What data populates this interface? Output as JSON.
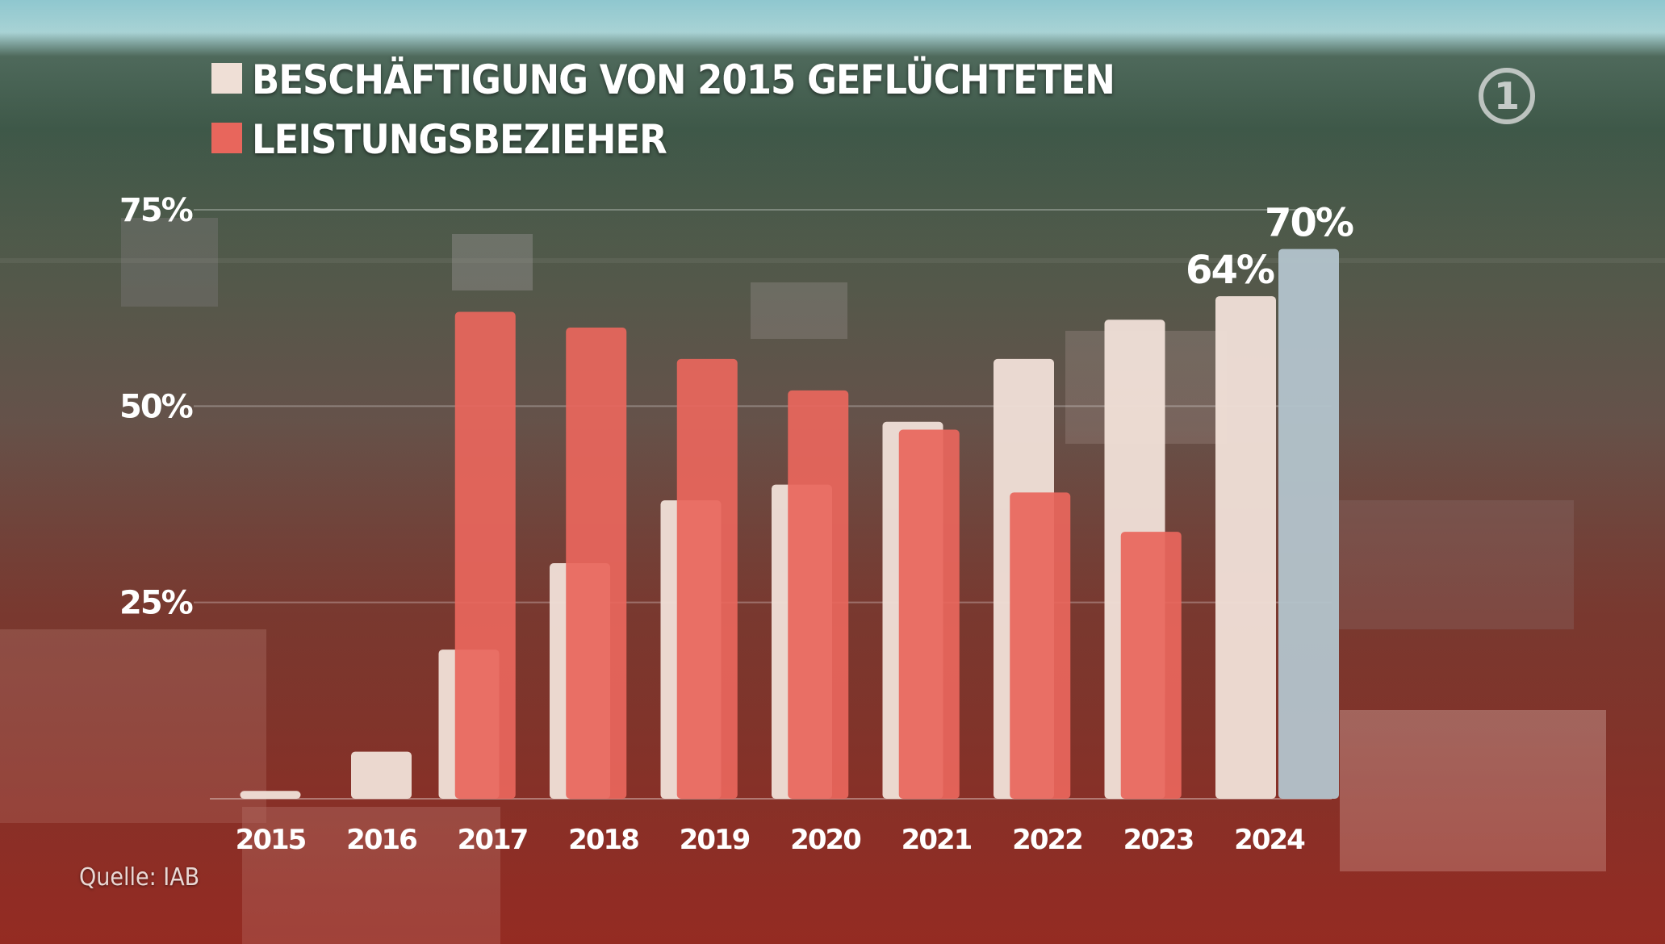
{
  "legend": {
    "employment_label": "BESCHÄFTIGUNG VON 2015 GEFLÜCHTETEN",
    "benefits_label": "LEISTUNGSBEZIEHER"
  },
  "source": "Quelle: IAB",
  "logo_text": "1",
  "colors": {
    "employment": "#efdfd6",
    "benefits": "#e8665c",
    "highlight": "#b3c4cc"
  },
  "chart_data": {
    "type": "bar",
    "categories": [
      "2015",
      "2016",
      "2017",
      "2018",
      "2019",
      "2020",
      "2021",
      "2022",
      "2023",
      "2024"
    ],
    "series": [
      {
        "name": "BESCHÄFTIGUNG VON 2015 GEFLÜCHTETEN",
        "values": [
          1,
          6,
          19,
          30,
          38,
          40,
          48,
          56,
          61,
          64
        ],
        "highlight": {
          "category": "2024",
          "value": 70
        }
      },
      {
        "name": "LEISTUNGSBEZIEHER",
        "values": [
          null,
          null,
          62,
          60,
          56,
          52,
          47,
          39,
          34,
          null
        ]
      }
    ],
    "data_labels": [
      {
        "category": "2024",
        "series": 0,
        "text": "64%"
      },
      {
        "category": "2024",
        "series": "highlight",
        "text": "70%"
      }
    ],
    "yticks": [
      {
        "value": 25,
        "label": "25%"
      },
      {
        "value": 50,
        "label": "50%"
      },
      {
        "value": 75,
        "label": "75%"
      }
    ],
    "ylim": [
      0,
      75
    ],
    "grid": true
  }
}
